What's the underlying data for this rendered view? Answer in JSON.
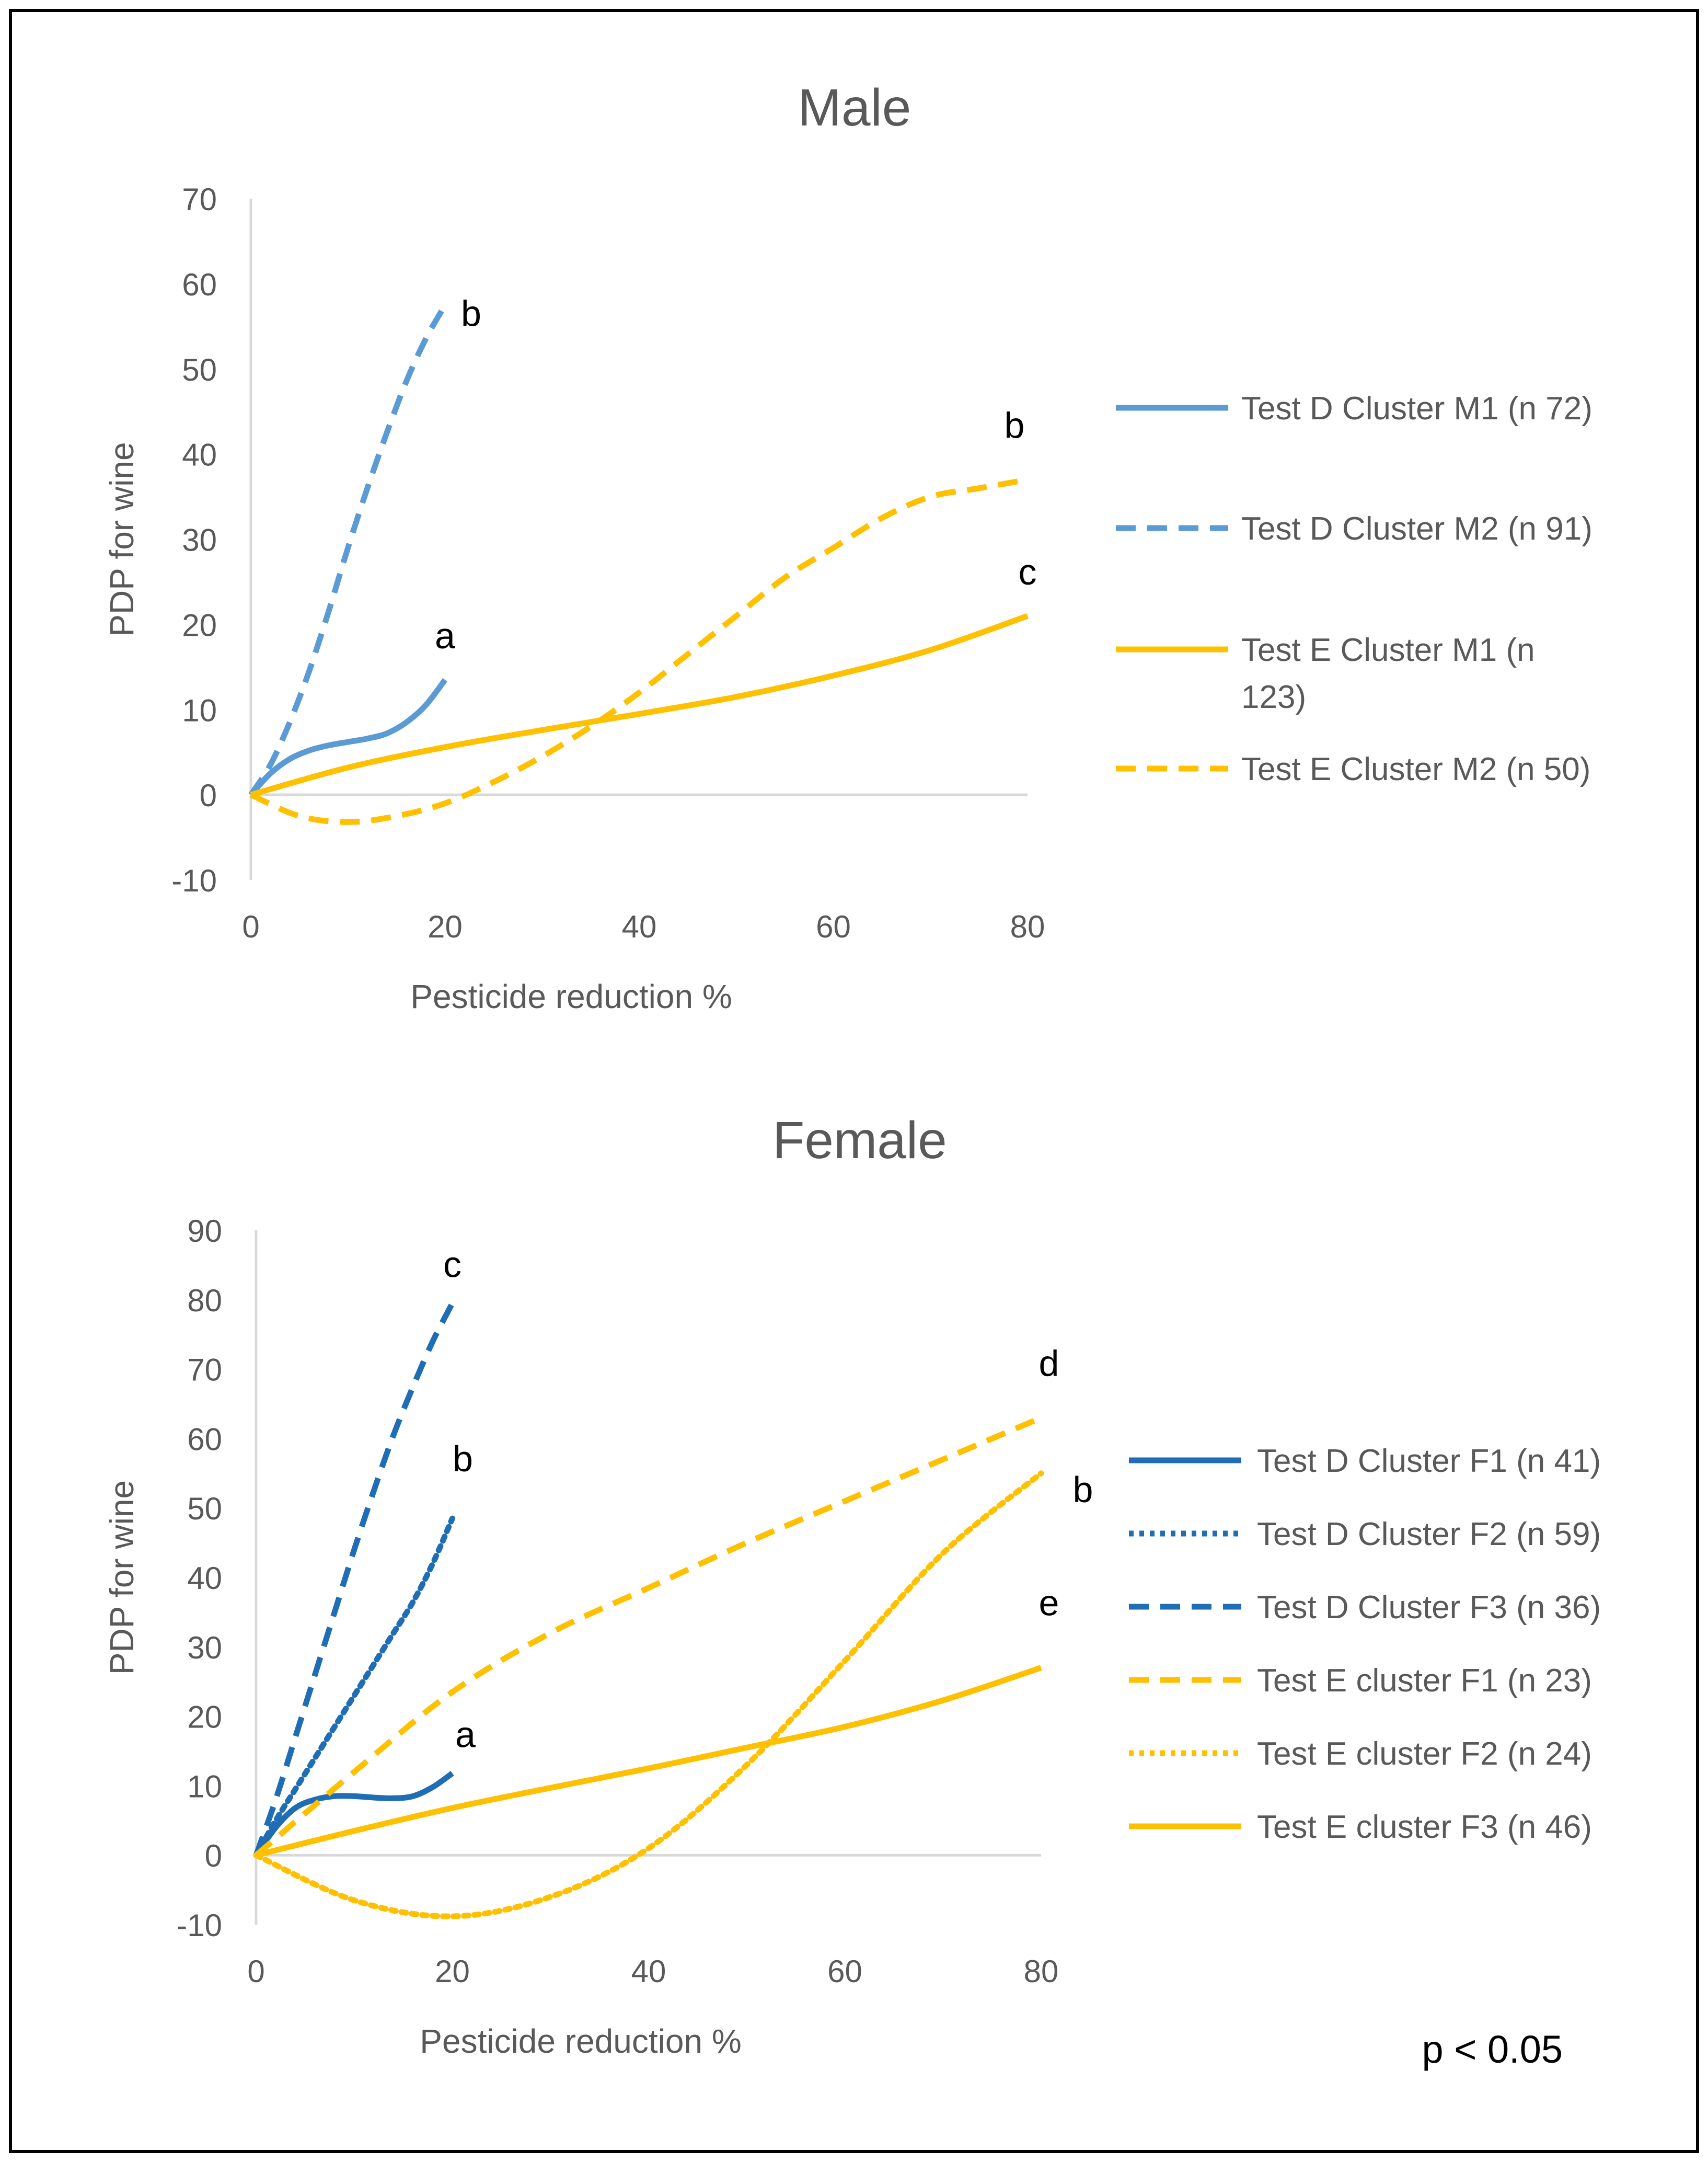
{
  "footnote": "p < 0.05",
  "colors": {
    "blue_light": "#5B9BD5",
    "blue_dark": "#1F6EB5",
    "gold": "#FFC000",
    "axis": "#D9D9D9",
    "text": "#595959",
    "border": "#000000"
  },
  "chart_data": [
    {
      "type": "line",
      "title": "Male",
      "xlabel": "Pesticide reduction %",
      "ylabel": "PDP for wine",
      "xlim": [
        0,
        80
      ],
      "ylim": [
        -10,
        70
      ],
      "xticks": [
        0,
        20,
        40,
        60,
        80
      ],
      "yticks": [
        -10,
        0,
        10,
        20,
        30,
        40,
        50,
        60,
        70
      ],
      "legend_position": "right",
      "series": [
        {
          "name": "Test D Cluster M1 (n 72)",
          "color": "#5B9BD5",
          "dash": "solid",
          "x": [
            0,
            2,
            4,
            6,
            8,
            10,
            12,
            14,
            16,
            18,
            20
          ],
          "y": [
            0,
            2.5,
            4.2,
            5.2,
            5.8,
            6.2,
            6.6,
            7.2,
            8.5,
            10.5,
            13.5
          ],
          "letter": "a"
        },
        {
          "name": "Test D Cluster M2 (n 91)",
          "color": "#5B9BD5",
          "dash": "dash",
          "x": [
            0,
            2,
            4,
            6,
            8,
            10,
            12,
            14,
            16,
            18,
            20
          ],
          "y": [
            0,
            3.5,
            8.5,
            14.5,
            21.5,
            29,
            36,
            42.5,
            48.5,
            53.5,
            57.5
          ],
          "letter": "b"
        },
        {
          "name": "Test E Cluster M1 (n 123)",
          "color": "#FFC000",
          "dash": "solid",
          "x": [
            0,
            10,
            20,
            30,
            40,
            50,
            60,
            70,
            80
          ],
          "y": [
            0,
            3.2,
            5.6,
            7.6,
            9.5,
            11.5,
            14,
            17,
            21
          ],
          "letter": "c"
        },
        {
          "name": "Test E Cluster M2 (n 50)",
          "color": "#FFC000",
          "dash": "dash",
          "x": [
            0,
            5,
            10,
            15,
            20,
            25,
            30,
            35,
            40,
            45,
            50,
            55,
            60,
            65,
            70,
            75,
            80
          ],
          "y": [
            0,
            -2.5,
            -3.2,
            -2.5,
            -1,
            1.5,
            4.5,
            8,
            12,
            16.5,
            21,
            25.5,
            29,
            32.5,
            35,
            36,
            37
          ],
          "letter": "b"
        }
      ]
    },
    {
      "type": "line",
      "title": "Female",
      "xlabel": "Pesticide reduction %",
      "ylabel": "PDP for wine",
      "xlim": [
        0,
        80
      ],
      "ylim": [
        -10,
        90
      ],
      "xticks": [
        0,
        20,
        40,
        60,
        80
      ],
      "yticks": [
        -10,
        0,
        10,
        20,
        30,
        40,
        50,
        60,
        70,
        80,
        90
      ],
      "legend_position": "right",
      "series": [
        {
          "name": "Test D Cluster F1 (n 41)",
          "color": "#1F6EB5",
          "dash": "solid",
          "x": [
            0,
            2,
            4,
            6,
            8,
            10,
            12,
            14,
            16,
            18,
            20
          ],
          "y": [
            0,
            4,
            6.8,
            8,
            8.5,
            8.5,
            8.3,
            8.2,
            8.5,
            9.8,
            11.8
          ],
          "letter": "a"
        },
        {
          "name": "Test D Cluster F2 (n 59)",
          "color": "#1F6EB5",
          "dash": "dot",
          "x": [
            0,
            2,
            4,
            6,
            8,
            10,
            12,
            14,
            16,
            18,
            20
          ],
          "y": [
            0,
            5,
            9.5,
            14,
            18.5,
            23,
            27.5,
            32,
            36.5,
            42,
            48.5
          ],
          "letter": "b"
        },
        {
          "name": "Test D Cluster F3 (n 36)",
          "color": "#1F6EB5",
          "dash": "dash",
          "x": [
            0,
            2,
            4,
            6,
            8,
            10,
            12,
            14,
            16,
            18,
            20
          ],
          "y": [
            0,
            8,
            17,
            26,
            35,
            44,
            52.5,
            60.5,
            67.5,
            74,
            79.5
          ],
          "letter": "c"
        },
        {
          "name": "Test E cluster F1 (n 23)",
          "color": "#FFC000",
          "dash": "dash",
          "x": [
            0,
            10,
            20,
            30,
            40,
            50,
            60,
            70,
            80
          ],
          "y": [
            0,
            12,
            23.5,
            32,
            38.5,
            45,
            51,
            57,
            63
          ],
          "letter": "d"
        },
        {
          "name": "Test E cluster F2 (n 24)",
          "color": "#FFC000",
          "dash": "dot",
          "x": [
            0,
            10,
            20,
            30,
            40,
            50,
            60,
            70,
            80
          ],
          "y": [
            0,
            -6.5,
            -8.8,
            -6,
            1,
            13,
            28,
            43.5,
            55
          ],
          "letter": "b"
        },
        {
          "name": "Test E cluster F3 (n 46)",
          "color": "#FFC000",
          "dash": "solid",
          "x": [
            0,
            10,
            20,
            30,
            40,
            50,
            60,
            70,
            80
          ],
          "y": [
            0,
            3.5,
            6.8,
            9.7,
            12.5,
            15.5,
            18.5,
            22.3,
            27
          ],
          "letter": "e"
        }
      ]
    }
  ]
}
